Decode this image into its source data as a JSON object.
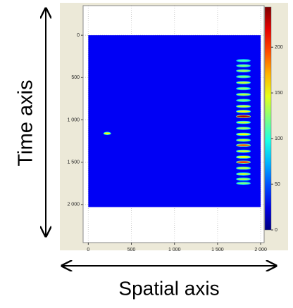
{
  "chart_data": {
    "type": "image",
    "y_axis_label": "Time axis",
    "x_axis_label": "Spatial axis",
    "xlim": [
      -60,
      2040
    ],
    "xticks": [
      0,
      500,
      {
        "value": 1000,
        "label": "1 000"
      },
      {
        "value": 1500,
        "label": "1 500"
      },
      {
        "value": 2000,
        "label": "2 000"
      }
    ],
    "ylim": [
      -350,
      2450
    ],
    "yticks": [
      0,
      500,
      {
        "value": 1000,
        "label": "1 000"
      },
      {
        "value": 1500,
        "label": "1 500"
      },
      {
        "value": 2000,
        "label": "2 000"
      }
    ],
    "y_inverted": true,
    "grid": true,
    "image_extent": {
      "x": [
        0,
        2000
      ],
      "y": [
        0,
        2030
      ]
    },
    "background_value": 28,
    "colormap": "jet",
    "clim": [
      0,
      244
    ],
    "cticks": [
      0,
      50,
      100,
      150,
      200
    ],
    "spots": {
      "x": [
        220,
        1800,
        1800,
        1800,
        1800,
        1800,
        1800,
        1800,
        1800,
        1800,
        1800,
        1800,
        1800,
        1800,
        1800,
        1800,
        1800,
        1800,
        1800,
        1800,
        1800,
        1800,
        1800,
        1800
      ],
      "y": [
        1160,
        300,
        360,
        420,
        490,
        560,
        630,
        700,
        770,
        840,
        900,
        960,
        1030,
        1100,
        1170,
        1240,
        1300,
        1370,
        1440,
        1500,
        1570,
        1640,
        1700,
        1750
      ],
      "values": [
        150,
        110,
        120,
        130,
        120,
        140,
        125,
        135,
        120,
        140,
        150,
        230,
        140,
        130,
        150,
        135,
        190,
        140,
        150,
        200,
        135,
        140,
        130,
        120
      ]
    }
  }
}
